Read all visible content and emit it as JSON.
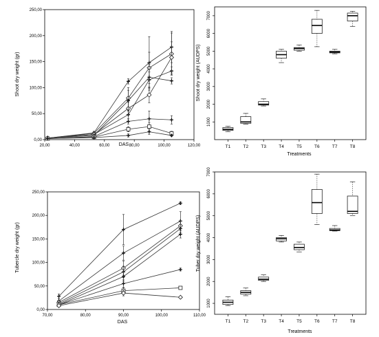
{
  "chart_data": [
    {
      "id": "shoot_line",
      "type": "line",
      "xlabel": "DAS",
      "ylabel": "Shoot dry weight (gr)",
      "xlim": [
        20,
        120
      ],
      "ylim": [
        0,
        250
      ],
      "xticks": [
        "20,00",
        "40,00",
        "60,00",
        "80,00",
        "100,00",
        "120,00"
      ],
      "yticks": [
        "0,00",
        "50,00",
        "100,00",
        "150,00",
        "200,00",
        "250,00"
      ],
      "x": [
        22,
        53,
        76,
        90,
        105
      ],
      "series": [
        {
          "values": [
            3,
            13,
            112,
            148,
            178
          ],
          "err": [
            1,
            3,
            5,
            50,
            30
          ],
          "marker": "plus"
        },
        {
          "values": [
            3,
            12,
            80,
            138,
            165
          ],
          "err": [
            1,
            3,
            20,
            30,
            40
          ],
          "marker": "diamond"
        },
        {
          "values": [
            3,
            10,
            48,
            115,
            132
          ],
          "err": [
            1,
            3,
            8,
            15,
            8
          ],
          "marker": "plus"
        },
        {
          "values": [
            3,
            10,
            60,
            86,
            158
          ],
          "err": [
            1,
            3,
            12,
            15,
            30
          ],
          "marker": "diamond"
        },
        {
          "values": [
            3,
            8,
            75,
            120,
            113
          ],
          "err": [
            1,
            2,
            20,
            25,
            6
          ],
          "marker": "plus"
        },
        {
          "values": [
            2,
            6,
            35,
            40,
            38
          ],
          "err": [
            1,
            2,
            5,
            15,
            8
          ],
          "marker": "plus"
        },
        {
          "values": [
            2,
            5,
            20,
            25,
            12
          ],
          "err": [
            1,
            2,
            5,
            8,
            4
          ],
          "marker": "square"
        },
        {
          "values": [
            2,
            4,
            8,
            15,
            8
          ],
          "err": [
            1,
            2,
            3,
            5,
            2
          ],
          "marker": "plus"
        }
      ]
    },
    {
      "id": "shoot_box",
      "type": "box",
      "xlabel": "Treatments",
      "ylabel": "Shoot dry weight (AUDPS)",
      "ylim": [
        0,
        7500
      ],
      "yticks": [
        1000,
        2000,
        3000,
        4000,
        5000,
        6000,
        7000
      ],
      "categories": [
        "T1",
        "T2",
        "T3",
        "T4",
        "T5",
        "T6",
        "T7",
        "T8"
      ],
      "boxes": [
        {
          "min": 450,
          "q1": 520,
          "median": 580,
          "q3": 680,
          "max": 750
        },
        {
          "min": 880,
          "q1": 920,
          "median": 1000,
          "q3": 1300,
          "max": 1480
        },
        {
          "min": 1900,
          "q1": 1950,
          "median": 2000,
          "q3": 2150,
          "max": 2300
        },
        {
          "min": 4350,
          "q1": 4600,
          "median": 4800,
          "q3": 5000,
          "max": 5100
        },
        {
          "min": 5000,
          "q1": 5050,
          "median": 5150,
          "q3": 5200,
          "max": 5350
        },
        {
          "min": 5250,
          "q1": 6000,
          "median": 6450,
          "q3": 6800,
          "max": 7300
        },
        {
          "min": 4850,
          "q1": 4900,
          "median": 4950,
          "q3": 5000,
          "max": 5100
        },
        {
          "min": 6400,
          "q1": 6700,
          "median": 7000,
          "q3": 7150,
          "max": 7250
        }
      ]
    },
    {
      "id": "tuber_line",
      "type": "line",
      "xlabel": "DAS",
      "ylabel": "Tubercle dry weight (gr)",
      "xlim": [
        70,
        110
      ],
      "ylim": [
        0,
        250
      ],
      "xticks": [
        "70,00",
        "80,00",
        "90,00",
        "100,00",
        "110,00"
      ],
      "yticks": [
        "0,00",
        "50,00",
        "100,00",
        "150,00",
        "200,00",
        "250,00"
      ],
      "x": [
        73,
        90,
        105
      ],
      "series": [
        {
          "values": [
            28,
            170,
            226
          ],
          "err": [
            5,
            32,
            3
          ],
          "marker": "plus"
        },
        {
          "values": [
            18,
            120,
            188
          ],
          "err": [
            5,
            15,
            20
          ],
          "marker": "plus"
        },
        {
          "values": [
            15,
            88,
            178
          ],
          "err": [
            4,
            15,
            10
          ],
          "marker": "diamond"
        },
        {
          "values": [
            12,
            80,
            172
          ],
          "err": [
            4,
            12,
            8
          ],
          "marker": "plus"
        },
        {
          "values": [
            10,
            70,
            160
          ],
          "err": [
            4,
            10,
            8
          ],
          "marker": "plus"
        },
        {
          "values": [
            10,
            55,
            85
          ],
          "err": [
            3,
            8,
            3
          ],
          "marker": "plus"
        },
        {
          "values": [
            10,
            40,
            46
          ],
          "err": [
            3,
            6,
            2
          ],
          "marker": "square"
        },
        {
          "values": [
            8,
            35,
            26
          ],
          "err": [
            3,
            6,
            2
          ],
          "marker": "diamond"
        }
      ]
    },
    {
      "id": "tuber_box",
      "type": "box",
      "xlabel": "Treatments",
      "ylabel": "Tuber dry weight (AUDPS)",
      "ylim": [
        500,
        7000
      ],
      "yticks": [
        1000,
        2000,
        3000,
        4000,
        5000,
        6000,
        7000
      ],
      "categories": [
        "T1",
        "T2",
        "T3",
        "T4",
        "T5",
        "T6",
        "T7",
        "T8"
      ],
      "boxes": [
        {
          "min": 900,
          "q1": 950,
          "median": 1050,
          "q3": 1150,
          "max": 1300
        },
        {
          "min": 1350,
          "q1": 1420,
          "median": 1500,
          "q3": 1580,
          "max": 1700
        },
        {
          "min": 2000,
          "q1": 2050,
          "median": 2100,
          "q3": 2200,
          "max": 2300
        },
        {
          "min": 3800,
          "q1": 3850,
          "median": 3950,
          "q3": 4000,
          "max": 4100
        },
        {
          "min": 3350,
          "q1": 3450,
          "median": 3550,
          "q3": 3700,
          "max": 3800
        },
        {
          "min": 4600,
          "q1": 5100,
          "median": 5600,
          "q3": 6200,
          "max": 6900
        },
        {
          "min": 4300,
          "q1": 4320,
          "median": 4350,
          "q3": 4420,
          "max": 4550
        },
        {
          "min": 5000,
          "q1": 5100,
          "median": 5200,
          "q3": 5900,
          "max": 6550
        }
      ]
    }
  ]
}
